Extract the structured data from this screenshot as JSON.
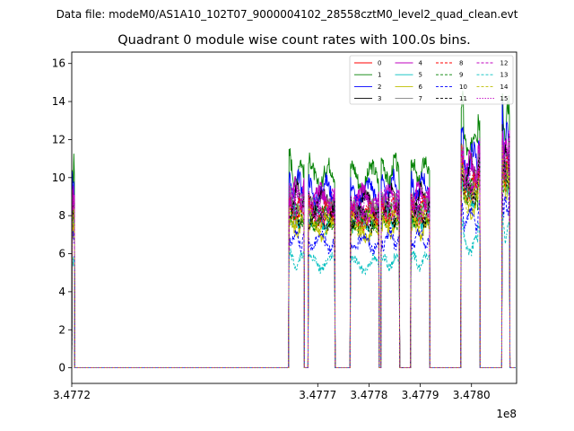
{
  "chart_data": {
    "type": "line",
    "suptitle": "Data file: modeM0/AS1A10_102T07_9000004102_28558cztM0_level2_quad_clean.evt",
    "title": "Quadrant 0 module wise count rates with 100.0s bins.",
    "xlabel": "",
    "ylabel": "",
    "x_offset_label": "1e8",
    "xlim": [
      347722000,
      347808800
    ],
    "ylim": [
      -0.82,
      16.6
    ],
    "xticks": [
      347720000,
      347770000,
      347780000,
      347790000,
      347800000
    ],
    "xtick_labels": [
      "3.4772",
      "3.4777",
      "3.4778",
      "3.4779",
      "3.4780"
    ],
    "yticks": [
      0,
      2,
      4,
      6,
      8,
      10,
      12,
      14,
      16
    ],
    "ytick_labels": [
      "0",
      "2",
      "4",
      "6",
      "8",
      "10",
      "12",
      "14",
      "16"
    ],
    "bin_seconds": 100,
    "legend_position": "upper right",
    "legend_columns": 4,
    "segments": [
      {
        "start": 347722100,
        "end": 347722500,
        "level": 1.0,
        "edge_boost": 1.0
      },
      {
        "start": 347764400,
        "end": 347767300,
        "level": 1.0,
        "edge_boost": 1.03
      },
      {
        "start": 347768200,
        "end": 347773300,
        "level": 0.98,
        "edge_boost": 1.02
      },
      {
        "start": 347776400,
        "end": 347781900,
        "level": 0.97,
        "edge_boost": 1.0
      },
      {
        "start": 347782400,
        "end": 347785900,
        "level": 1.0,
        "edge_boost": 1.0
      },
      {
        "start": 347788200,
        "end": 347791800,
        "level": 1.0,
        "edge_boost": 1.0
      },
      {
        "start": 347798000,
        "end": 347801600,
        "level": 1.15,
        "edge_boost": 1.12
      },
      {
        "start": 347806000,
        "end": 347807400,
        "level": 1.25,
        "edge_boost": 1.1
      }
    ],
    "series": [
      {
        "name": "0",
        "color": "#ff0000",
        "dash": "solid",
        "base": 8.2
      },
      {
        "name": "1",
        "color": "#008000",
        "dash": "solid",
        "base": 10.3
      },
      {
        "name": "2",
        "color": "#0000ff",
        "dash": "solid",
        "base": 9.5
      },
      {
        "name": "3",
        "color": "#000000",
        "dash": "solid",
        "base": 8.9
      },
      {
        "name": "4",
        "color": "#bf00bf",
        "dash": "solid",
        "base": 9.1
      },
      {
        "name": "5",
        "color": "#00bfbf",
        "dash": "solid",
        "base": 7.9
      },
      {
        "name": "6",
        "color": "#bfbf00",
        "dash": "solid",
        "base": 7.4
      },
      {
        "name": "7",
        "color": "#808080",
        "dash": "solid",
        "base": 8.4
      },
      {
        "name": "8",
        "color": "#ff0000",
        "dash": "dashed",
        "base": 8.3
      },
      {
        "name": "9",
        "color": "#008000",
        "dash": "dashed",
        "base": 8.0
      },
      {
        "name": "10",
        "color": "#0000ff",
        "dash": "dashed",
        "base": 6.8
      },
      {
        "name": "11",
        "color": "#000000",
        "dash": "dashed",
        "base": 8.1
      },
      {
        "name": "12",
        "color": "#bf00bf",
        "dash": "dashed",
        "base": 8.6
      },
      {
        "name": "13",
        "color": "#00bfbf",
        "dash": "dashed",
        "base": 5.6
      },
      {
        "name": "14",
        "color": "#bfbf00",
        "dash": "dashed",
        "base": 7.8
      },
      {
        "name": "15",
        "color": "#bf00bf",
        "dash": "dotted",
        "base": 8.7
      }
    ]
  }
}
